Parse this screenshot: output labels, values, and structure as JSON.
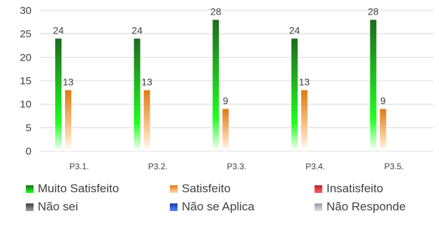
{
  "chart_data": {
    "type": "bar",
    "categories": [
      "P3.1.",
      "P3.2.",
      "P3.3.",
      "P3.4.",
      "P3.5."
    ],
    "ylim": [
      0,
      30
    ],
    "yticks": [
      0,
      5,
      10,
      15,
      20,
      25,
      30
    ],
    "grid": true,
    "legend_position": "bottom",
    "series": [
      {
        "name": "Muito Satisfeito",
        "values": [
          24,
          24,
          28,
          24,
          28
        ],
        "color_top": "#1e6b1e",
        "color_bottom": "#1fff1f"
      },
      {
        "name": "Satisfeito",
        "values": [
          13,
          13,
          9,
          13,
          9
        ],
        "color_top": "#e07a10",
        "color_bottom": "#ffd9b0"
      },
      {
        "name": "Insatisfeito",
        "values": [
          0,
          0,
          0,
          0,
          0
        ],
        "color_top": "#c0202a",
        "color_bottom": "#ff6060"
      },
      {
        "name": "Não sei",
        "values": [
          0,
          0,
          0,
          0,
          0
        ],
        "color_top": "#404040",
        "color_bottom": "#a0a0a0"
      },
      {
        "name": "Não se Aplica",
        "values": [
          0,
          0,
          0,
          0,
          0
        ],
        "color_top": "#1a3a9a",
        "color_bottom": "#5a8aff"
      },
      {
        "name": "Não Responde",
        "values": [
          0,
          0,
          0,
          0,
          0
        ],
        "color_top": "#9a9aaa",
        "color_bottom": "#e0e0ea"
      }
    ]
  }
}
